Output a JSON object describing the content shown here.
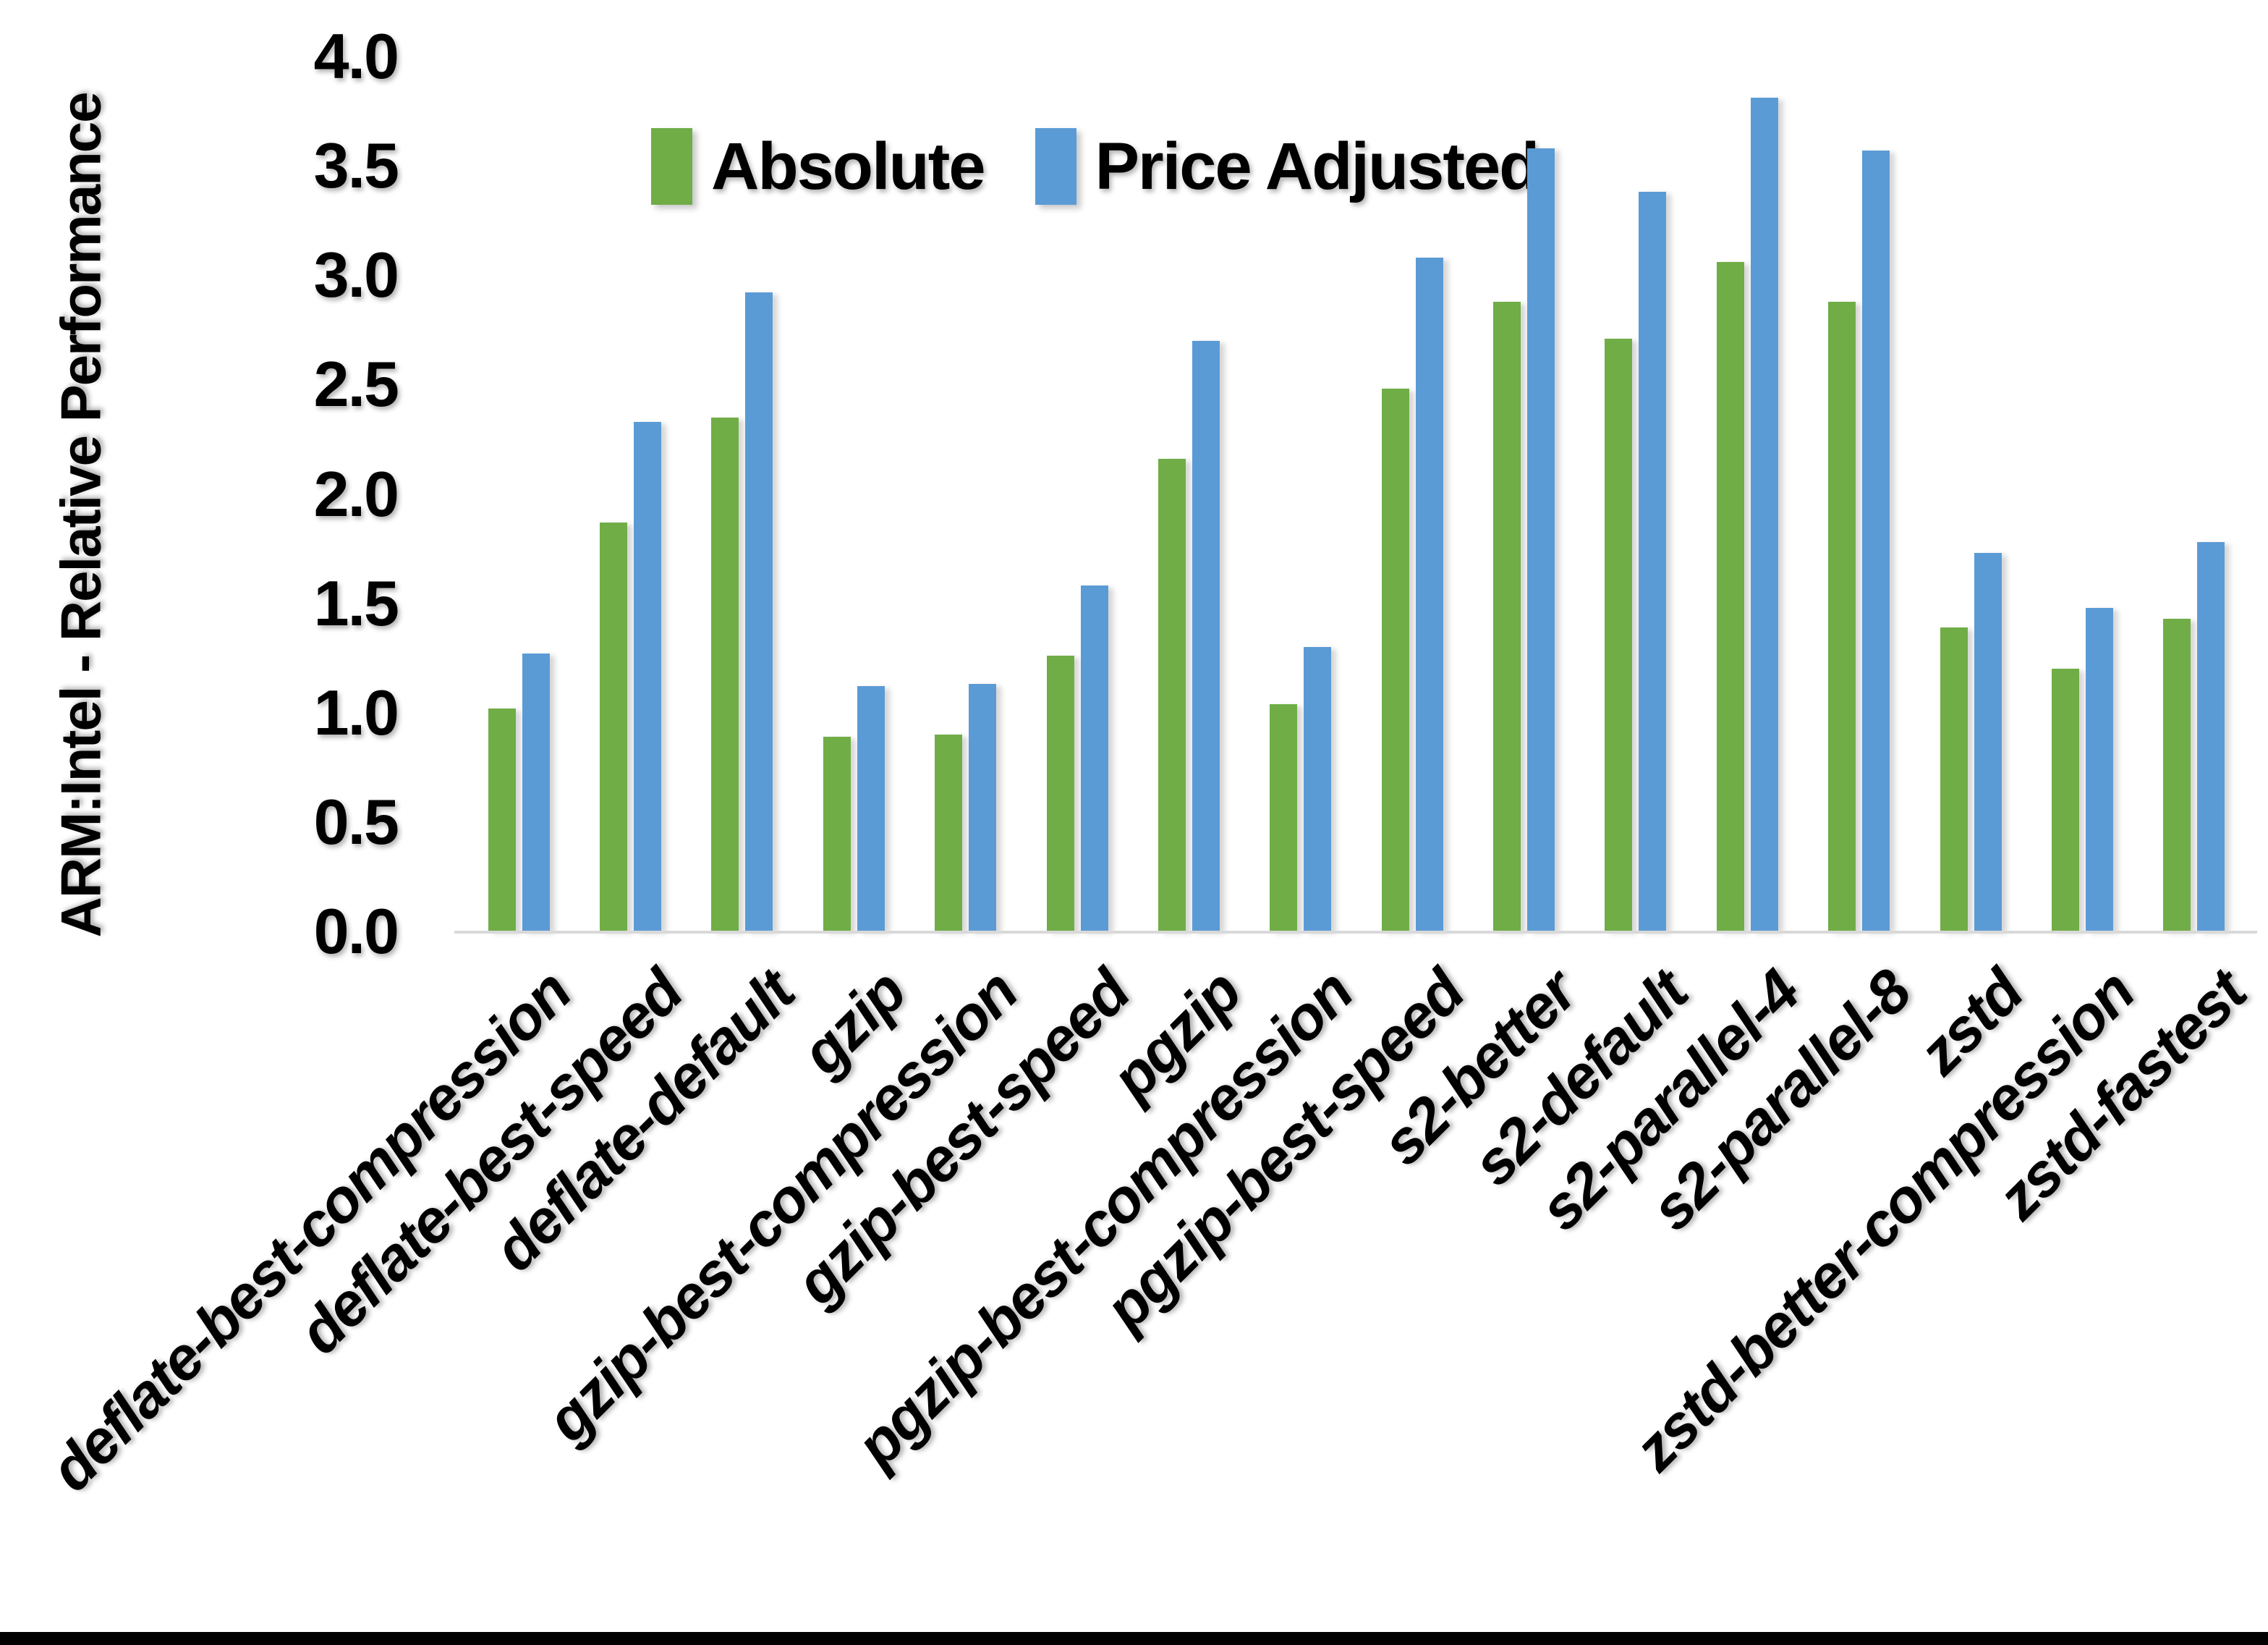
{
  "chart_data": {
    "type": "bar",
    "title": "",
    "xlabel": "",
    "ylabel": "ARM:Intel - Relative Performance",
    "ylim": [
      0.0,
      4.0
    ],
    "yticks": [
      "0.0",
      "0.5",
      "1.0",
      "1.5",
      "2.0",
      "2.5",
      "3.0",
      "3.5",
      "4.0"
    ],
    "grid": false,
    "legend_position": "top-center",
    "axis_line_color": "#D9D9D9",
    "background_color": "#FFFFFF",
    "categories": [
      "deflate-best-compression",
      "deflate-best-speed",
      "deflate-default",
      "gzip",
      "gzip-best-compression",
      "gzip-best-speed",
      "pgzip",
      "pgzip-best-compression",
      "pgzip-best-speed",
      "s2-better",
      "s2-default",
      "s2-parallel-4",
      "s2-parallel-8",
      "zstd",
      "zstd-better-compression",
      "zstd-fastest"
    ],
    "series": [
      {
        "name": "Absolute",
        "color": "#70AD47",
        "values": [
          1.02,
          1.87,
          2.35,
          0.89,
          0.9,
          1.26,
          2.16,
          1.04,
          2.48,
          2.88,
          2.71,
          3.06,
          2.88,
          1.39,
          1.2,
          1.43
        ]
      },
      {
        "name": "Price Adjusted",
        "color": "#5B9BD5",
        "values": [
          1.27,
          2.33,
          2.92,
          1.12,
          1.13,
          1.58,
          2.7,
          1.3,
          3.08,
          3.58,
          3.38,
          3.81,
          3.57,
          1.73,
          1.48,
          1.78
        ]
      }
    ]
  }
}
